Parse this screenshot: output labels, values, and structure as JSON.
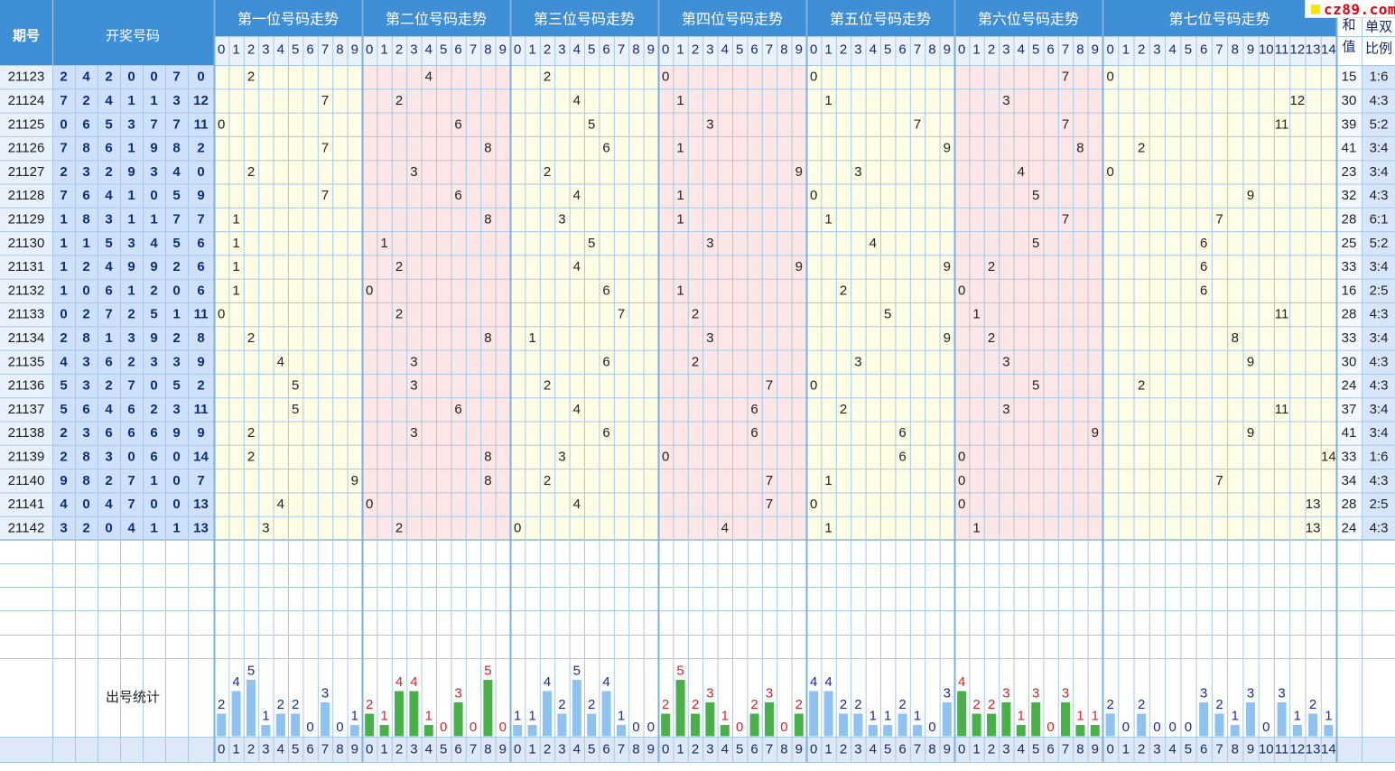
{
  "site_logo": "cz89.com",
  "header": {
    "period": "期号",
    "draw": "开奖号码",
    "sum_l1": "和",
    "sum_l2": "值",
    "ratio_l1": "单双",
    "ratio_l2": "比例"
  },
  "sections": [
    {
      "title": "第一位号码走势",
      "digits": [
        "0",
        "1",
        "2",
        "3",
        "4",
        "5",
        "6",
        "7",
        "8",
        "9"
      ],
      "bg": "yellow"
    },
    {
      "title": "第二位号码走势",
      "digits": [
        "0",
        "1",
        "2",
        "3",
        "4",
        "5",
        "6",
        "7",
        "8",
        "9"
      ],
      "bg": "pink"
    },
    {
      "title": "第三位号码走势",
      "digits": [
        "0",
        "1",
        "2",
        "3",
        "4",
        "5",
        "6",
        "7",
        "8",
        "9"
      ],
      "bg": "yellow"
    },
    {
      "title": "第四位号码走势",
      "digits": [
        "0",
        "1",
        "2",
        "3",
        "4",
        "5",
        "6",
        "7",
        "8",
        "9"
      ],
      "bg": "pink"
    },
    {
      "title": "第五位号码走势",
      "digits": [
        "0",
        "1",
        "2",
        "3",
        "4",
        "5",
        "6",
        "7",
        "8",
        "9"
      ],
      "bg": "yellow"
    },
    {
      "title": "第六位号码走势",
      "digits": [
        "0",
        "1",
        "2",
        "3",
        "4",
        "5",
        "6",
        "7",
        "8",
        "9"
      ],
      "bg": "pink"
    },
    {
      "title": "第七位号码走势",
      "digits": [
        "0",
        "1",
        "2",
        "3",
        "4",
        "5",
        "6",
        "7",
        "8",
        "9",
        "10",
        "11",
        "12",
        "13",
        "14"
      ],
      "bg": "yellow"
    }
  ],
  "stats_label": "出号统计",
  "colors": {
    "header_bg": "#3f8fd6",
    "header_text": "#ffffff",
    "subheader_bg": "#eaf2fb",
    "period_bg": "#e8f1fb",
    "draw_bg": "#cfe0fb",
    "draw_text": "#0b2f7a",
    "yellow_cell": "#fefee6",
    "pink_cell": "#fde6e6",
    "grid_line": "#a7c8e8",
    "blue_bar": "#8ec2f0",
    "green_bar": "#4ab04a",
    "red_number": "#d8232a",
    "blue_number": "#1a2a9a"
  },
  "chart_data": {
    "type": "table",
    "periods": [
      "21123",
      "21124",
      "21125",
      "21126",
      "21127",
      "21128",
      "21129",
      "21130",
      "21131",
      "21132",
      "21133",
      "21134",
      "21135",
      "21136",
      "21137",
      "21138",
      "21139",
      "21140",
      "21141",
      "21142"
    ],
    "draws": [
      [
        2,
        4,
        2,
        0,
        0,
        7,
        0
      ],
      [
        7,
        2,
        4,
        1,
        1,
        3,
        12
      ],
      [
        0,
        6,
        5,
        3,
        7,
        7,
        11
      ],
      [
        7,
        8,
        6,
        1,
        9,
        8,
        2
      ],
      [
        2,
        3,
        2,
        9,
        3,
        4,
        0
      ],
      [
        7,
        6,
        4,
        1,
        0,
        5,
        9
      ],
      [
        1,
        8,
        3,
        1,
        1,
        7,
        7
      ],
      [
        1,
        1,
        5,
        3,
        4,
        5,
        6
      ],
      [
        1,
        2,
        4,
        9,
        9,
        2,
        6
      ],
      [
        1,
        0,
        6,
        1,
        2,
        0,
        6
      ],
      [
        0,
        2,
        7,
        2,
        5,
        1,
        11
      ],
      [
        2,
        8,
        1,
        3,
        9,
        2,
        8
      ],
      [
        4,
        3,
        6,
        2,
        3,
        3,
        9
      ],
      [
        5,
        3,
        2,
        7,
        0,
        5,
        2
      ],
      [
        5,
        6,
        4,
        6,
        2,
        3,
        11
      ],
      [
        2,
        3,
        6,
        6,
        6,
        9,
        9
      ],
      [
        2,
        8,
        3,
        0,
        6,
        0,
        14
      ],
      [
        9,
        8,
        2,
        7,
        1,
        0,
        7
      ],
      [
        4,
        0,
        4,
        7,
        0,
        0,
        13
      ],
      [
        3,
        2,
        0,
        4,
        1,
        1,
        13
      ]
    ],
    "sums": [
      "15",
      "30",
      "39",
      "41",
      "23",
      "32",
      "28",
      "25",
      "33",
      "16",
      "28",
      "33",
      "30",
      "24",
      "37",
      "41",
      "33",
      "34",
      "28",
      "24"
    ],
    "ratios": [
      "1:6",
      "4:3",
      "5:2",
      "3:4",
      "3:4",
      "4:3",
      "6:1",
      "5:2",
      "3:4",
      "2:5",
      "4:3",
      "3:4",
      "4:3",
      "4:3",
      "3:4",
      "3:4",
      "1:6",
      "4:3",
      "2:5",
      "4:3"
    ],
    "stats": [
      [
        2,
        4,
        5,
        1,
        2,
        2,
        0,
        3,
        0,
        1
      ],
      [
        2,
        1,
        4,
        4,
        1,
        0,
        3,
        0,
        5,
        0
      ],
      [
        1,
        1,
        4,
        2,
        5,
        2,
        4,
        1,
        0,
        0
      ],
      [
        2,
        5,
        2,
        3,
        1,
        0,
        2,
        3,
        0,
        2
      ],
      [
        4,
        4,
        2,
        2,
        1,
        1,
        2,
        1,
        0,
        3
      ],
      [
        4,
        2,
        2,
        3,
        1,
        3,
        0,
        3,
        1,
        1
      ],
      [
        2,
        0,
        2,
        0,
        0,
        0,
        3,
        2,
        1,
        3,
        0,
        3,
        1,
        2,
        1
      ]
    ]
  }
}
